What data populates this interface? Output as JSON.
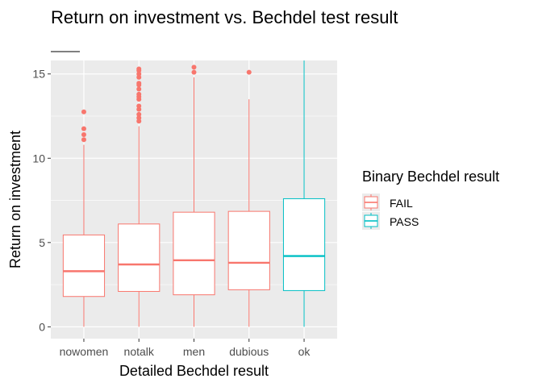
{
  "chart_data": {
    "type": "box",
    "title": "Return on investment vs. Bechdel test result",
    "subtitle": "",
    "xlabel": "Detailed Bechdel result",
    "ylabel": "Return on investment",
    "categories": [
      "nowomen",
      "notalk",
      "men",
      "dubious",
      "ok"
    ],
    "y_ticks": [
      0,
      5,
      10,
      15
    ],
    "ylim": [
      -0.7,
      15.8
    ],
    "grid": true,
    "legend": {
      "title": "Binary Bechdel result",
      "placement": "right",
      "entries": [
        {
          "label": "FAIL",
          "color": "#F8766D"
        },
        {
          "label": "PASS",
          "color": "#00BFC4"
        }
      ]
    },
    "boxes": [
      {
        "category": "nowomen",
        "group": "FAIL",
        "whisker_low": 0.0,
        "q1": 1.8,
        "median": 3.3,
        "q3": 5.45,
        "whisker_high": 10.8,
        "outliers": [
          11.1,
          11.4,
          11.75,
          12.75
        ]
      },
      {
        "category": "notalk",
        "group": "FAIL",
        "whisker_low": 0.0,
        "q1": 2.1,
        "median": 3.7,
        "q3": 6.1,
        "whisker_high": 11.9,
        "outliers": [
          12.2,
          12.4,
          12.6,
          12.9,
          13.1,
          13.5,
          13.65,
          13.8,
          14.1,
          14.35,
          14.45,
          14.8,
          15.0,
          15.2,
          15.3
        ]
      },
      {
        "category": "men",
        "group": "FAIL",
        "whisker_low": 0.0,
        "q1": 1.9,
        "median": 3.95,
        "q3": 6.8,
        "whisker_high": 14.8,
        "outliers": [
          15.1,
          15.4
        ]
      },
      {
        "category": "dubious",
        "group": "FAIL",
        "whisker_low": 0.0,
        "q1": 2.2,
        "median": 3.8,
        "q3": 6.85,
        "whisker_high": 13.5,
        "outliers": [
          15.1
        ]
      },
      {
        "category": "ok",
        "group": "PASS",
        "whisker_low": 0.0,
        "q1": 2.15,
        "median": 4.2,
        "q3": 7.6,
        "whisker_high": 15.8,
        "outliers": []
      }
    ],
    "colors": {
      "FAIL": "#F8766D",
      "PASS": "#00BFC4",
      "panel": "#EBEBEB",
      "grid_major": "#FFFFFF",
      "text": "#000000",
      "tick_text": "#4D4D4D"
    }
  }
}
